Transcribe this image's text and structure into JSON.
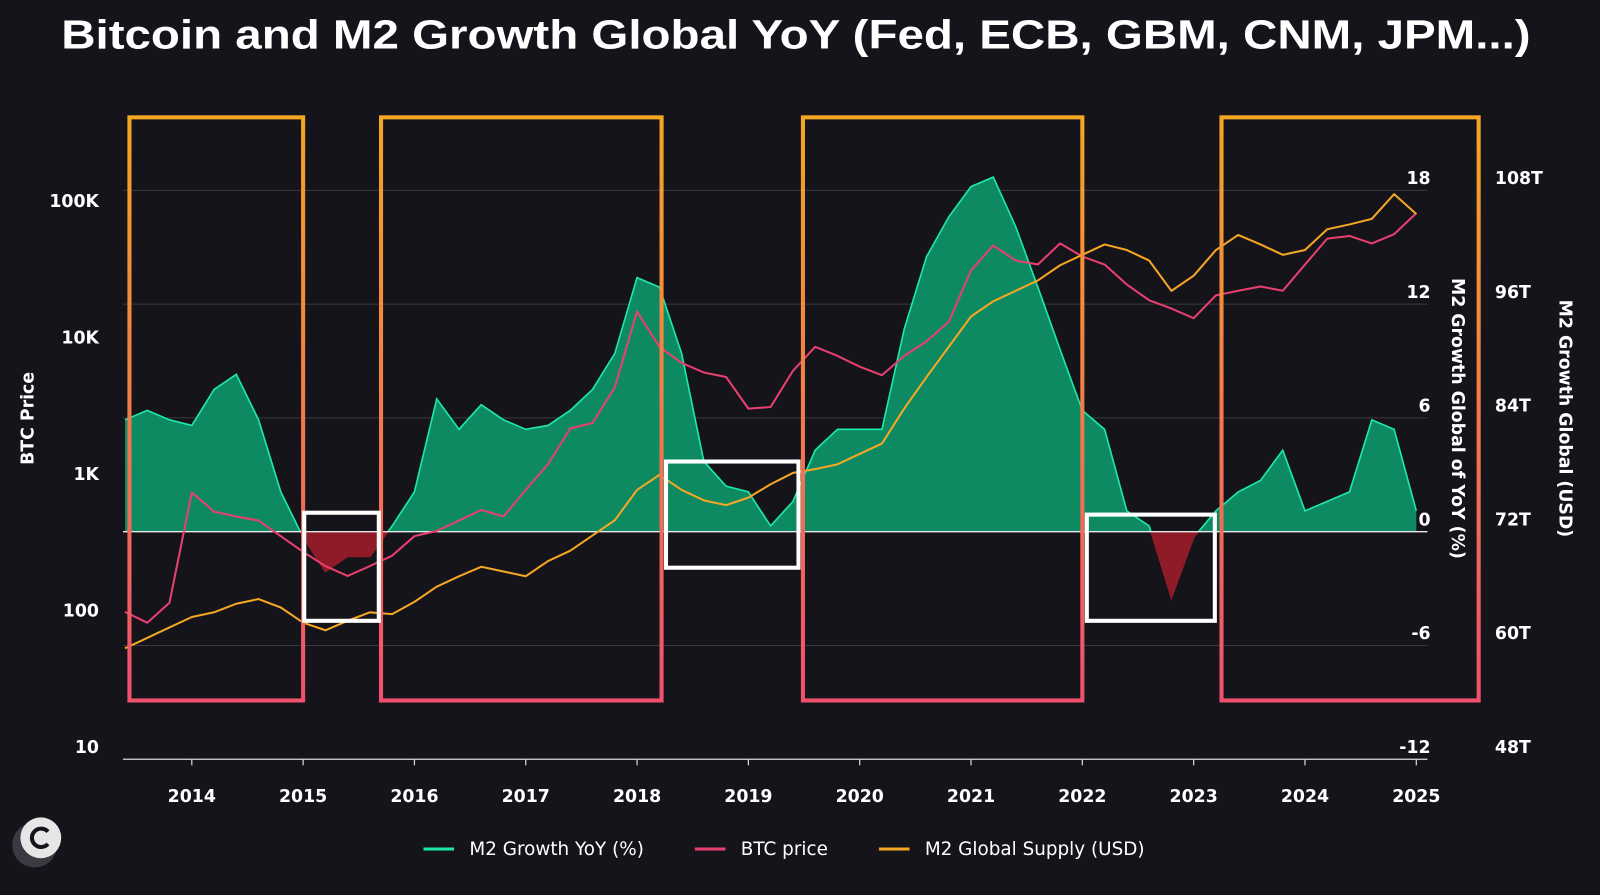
{
  "chart_data": {
    "type": "line",
    "title": "Bitcoin and M2 Growth Global YoY (Fed, ECB, GBM, CNM, JPM...)",
    "x": [
      2013.4,
      2013.6,
      2013.8,
      2014.0,
      2014.2,
      2014.4,
      2014.6,
      2014.8,
      2015.0,
      2015.2,
      2015.4,
      2015.6,
      2015.8,
      2016.0,
      2016.2,
      2016.4,
      2016.6,
      2016.8,
      2017.0,
      2017.2,
      2017.4,
      2017.6,
      2017.8,
      2018.0,
      2018.2,
      2018.4,
      2018.6,
      2018.8,
      2019.0,
      2019.2,
      2019.4,
      2019.6,
      2019.8,
      2020.0,
      2020.2,
      2020.4,
      2020.6,
      2020.8,
      2021.0,
      2021.2,
      2021.4,
      2021.6,
      2021.8,
      2022.0,
      2022.2,
      2022.4,
      2022.6,
      2022.8,
      2023.0,
      2023.2,
      2023.4,
      2023.6,
      2023.8,
      2024.0,
      2024.2,
      2024.4,
      2024.6,
      2024.8,
      2025.0
    ],
    "xlim": [
      2013.4,
      2025.1
    ],
    "xticks": [
      2014,
      2015,
      2016,
      2017,
      2018,
      2019,
      2020,
      2021,
      2022,
      2023,
      2024,
      2025
    ],
    "ylabel": "BTC Price",
    "yscale": "log",
    "ylim": [
      10,
      1000000
    ],
    "yticks": [
      10,
      100,
      {
        "value": 1000,
        "label": "1K"
      },
      {
        "value": 10000,
        "label": "10K"
      },
      {
        "value": 100000,
        "label": "100K"
      }
    ],
    "y2label": "M2 Growth Global of YoY (%)",
    "y2lim": [
      -12,
      24
    ],
    "y2ticks": [
      -12,
      -6,
      0,
      6,
      12,
      18
    ],
    "y3label": "M2 Growth Global (USD)",
    "y3lim": [
      48,
      120
    ],
    "y3ticks": [
      {
        "value": 48,
        "label": "48T"
      },
      {
        "value": 60,
        "label": "60T"
      },
      {
        "value": 72,
        "label": "72T"
      },
      {
        "value": 84,
        "label": "84T"
      },
      {
        "value": 96,
        "label": "96T"
      },
      {
        "value": 108,
        "label": "108T"
      }
    ],
    "grid": true,
    "legend": "bottom",
    "series": [
      {
        "name": "M2 Growth YoY (%)",
        "type": "area",
        "axis": "y2",
        "color": "#1de9a6",
        "fill": "#0e8a63",
        "negative_fill": "#8e1b27",
        "values": [
          5.9,
          6.4,
          5.9,
          5.6,
          7.5,
          8.3,
          5.9,
          2.1,
          -0.3,
          -2.1,
          -1.3,
          -1.3,
          0.3,
          2.1,
          7.0,
          5.4,
          6.7,
          5.9,
          5.4,
          5.6,
          6.4,
          7.5,
          9.4,
          13.4,
          12.9,
          9.4,
          3.7,
          2.4,
          2.1,
          0.3,
          1.6,
          4.3,
          5.4,
          5.4,
          5.4,
          10.7,
          14.5,
          16.6,
          18.2,
          18.7,
          16.1,
          12.9,
          9.6,
          6.4,
          5.4,
          1.1,
          0.3,
          -3.5,
          -0.3,
          1.1,
          2.1,
          2.7,
          4.3,
          1.1,
          1.6,
          2.1,
          5.9,
          5.4,
          1.1
        ]
      },
      {
        "name": "BTC price",
        "type": "line",
        "axis": "y",
        "color": "#e8406e",
        "values": [
          120,
          100,
          140,
          900,
          650,
          600,
          560,
          430,
          330,
          260,
          220,
          260,
          310,
          430,
          470,
          560,
          670,
          600,
          940,
          1450,
          2650,
          2900,
          5300,
          19000,
          10500,
          8000,
          6800,
          6300,
          3700,
          3800,
          7000,
          10500,
          9000,
          7500,
          6500,
          9000,
          11500,
          16000,
          38000,
          58000,
          45000,
          42000,
          60000,
          48000,
          42000,
          30000,
          23000,
          20000,
          17000,
          25000,
          27000,
          29000,
          27000,
          42000,
          65000,
          68000,
          60000,
          70000,
          100000
        ]
      },
      {
        "name": "M2 Global Supply (USD)",
        "type": "line",
        "axis": "y3",
        "color": "#f5a623",
        "values": [
          59.7,
          60.8,
          61.9,
          63.0,
          63.5,
          64.4,
          64.9,
          64.0,
          62.4,
          61.6,
          62.6,
          63.5,
          63.3,
          64.6,
          66.2,
          67.3,
          68.3,
          67.8,
          67.3,
          68.9,
          70.0,
          71.6,
          73.2,
          76.4,
          78.0,
          76.4,
          75.3,
          74.8,
          75.6,
          77.0,
          78.2,
          78.6,
          79.1,
          80.2,
          81.3,
          85.0,
          88.3,
          91.5,
          94.7,
          96.3,
          97.4,
          98.5,
          100.1,
          101.2,
          102.3,
          101.7,
          100.6,
          97.4,
          99.0,
          101.7,
          103.3,
          102.3,
          101.2,
          101.7,
          103.9,
          104.4,
          105.0,
          107.6,
          105.5
        ]
      }
    ],
    "boxes": [
      {
        "x": [
          2013.44,
          2015.0
        ],
        "y2": [
          -8.9,
          21.85
        ],
        "colors": [
          "#f5a623",
          "#f0506e"
        ]
      },
      {
        "x": [
          2015.7,
          2018.22
        ],
        "y2": [
          -8.9,
          21.85
        ],
        "colors": [
          "#f5a623",
          "#f0506e"
        ]
      },
      {
        "x": [
          2019.49,
          2022.0
        ],
        "y2": [
          -8.9,
          21.85
        ],
        "colors": [
          "#f5a623",
          "#f0506e"
        ]
      },
      {
        "x": [
          2023.25,
          2025.56
        ],
        "y2": [
          -8.9,
          21.85
        ],
        "colors": [
          "#f5a623",
          "#f0506e"
        ]
      },
      {
        "x": [
          2015.01,
          2015.68
        ],
        "y2": [
          -4.7,
          1.0
        ],
        "colors": [
          "#ffffff"
        ]
      },
      {
        "x": [
          2018.26,
          2019.45
        ],
        "y2": [
          -1.9,
          3.7
        ],
        "colors": [
          "#ffffff"
        ]
      },
      {
        "x": [
          2022.04,
          2023.19
        ],
        "y2": [
          -4.7,
          0.9
        ],
        "colors": [
          "#ffffff"
        ]
      }
    ]
  }
}
